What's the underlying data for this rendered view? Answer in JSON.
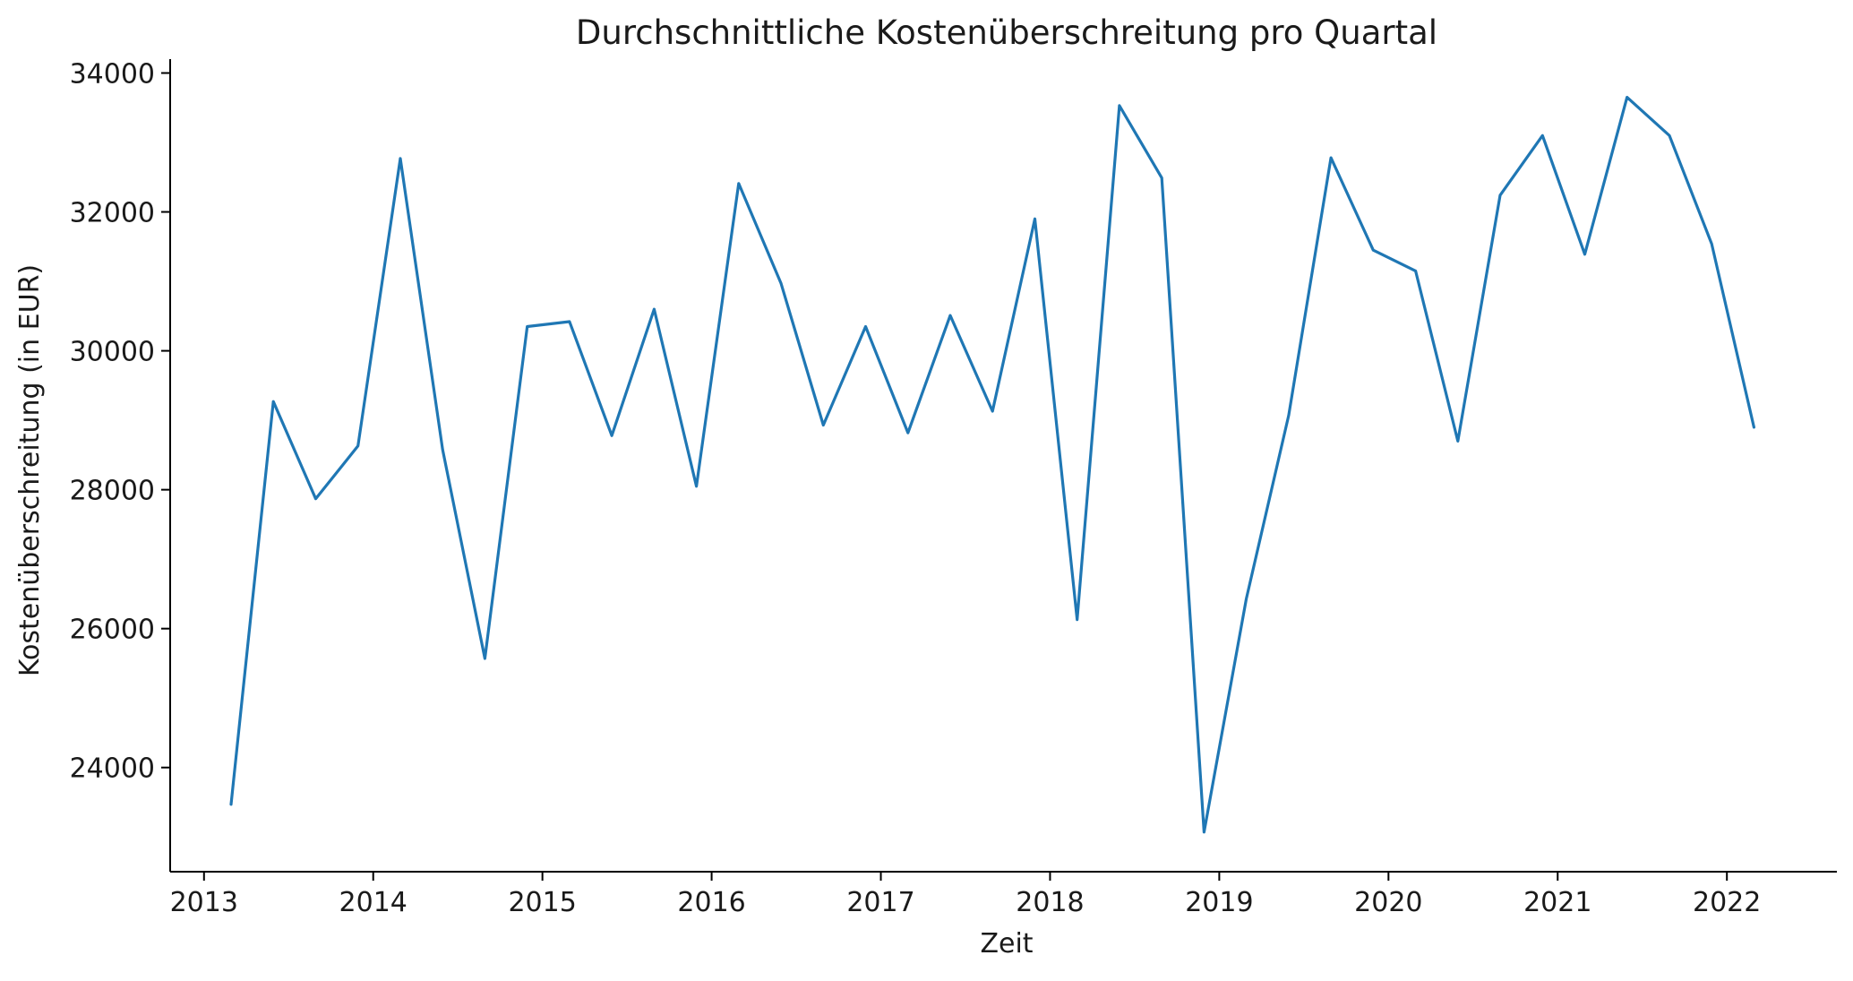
{
  "chart_data": {
    "type": "line",
    "title": "Durchschnittliche Kostenüberschreitung pro Quartal",
    "xlabel": "Zeit",
    "ylabel": "Kostenüberschreitung (in EUR)",
    "x_unit": "year",
    "xlim": [
      2012.8,
      2022.65
    ],
    "ylim": [
      22500,
      34200
    ],
    "x_ticks": [
      2013,
      2014,
      2015,
      2016,
      2017,
      2018,
      2019,
      2020,
      2021,
      2022
    ],
    "x_tick_labels": [
      "2013",
      "2014",
      "2015",
      "2016",
      "2017",
      "2018",
      "2019",
      "2020",
      "2021",
      "2022"
    ],
    "y_ticks": [
      24000,
      26000,
      28000,
      30000,
      32000,
      34000
    ],
    "y_tick_labels": [
      "24000",
      "26000",
      "28000",
      "30000",
      "32000",
      "34000"
    ],
    "grid": false,
    "series": [
      {
        "color": "#1f77b4",
        "x": [
          2013.16,
          2013.41,
          2013.66,
          2013.91,
          2014.16,
          2014.41,
          2014.66,
          2014.91,
          2015.16,
          2015.41,
          2015.66,
          2015.91,
          2016.16,
          2016.41,
          2016.66,
          2016.91,
          2017.16,
          2017.41,
          2017.66,
          2017.91,
          2018.16,
          2018.41,
          2018.66,
          2018.91,
          2019.16,
          2019.41,
          2019.66,
          2019.91,
          2020.16,
          2020.41,
          2020.66,
          2020.91,
          2021.16,
          2021.41,
          2021.66,
          2021.91,
          2022.16
        ],
        "y": [
          23470,
          29270,
          27870,
          28630,
          32770,
          28580,
          25570,
          30350,
          30420,
          28780,
          30600,
          28050,
          32410,
          30970,
          28930,
          30350,
          28820,
          30510,
          29130,
          31900,
          26130,
          33530,
          32490,
          23070,
          26430,
          29070,
          32780,
          31450,
          31150,
          28700,
          32240,
          33100,
          31390,
          33650,
          33100,
          31540,
          28900
        ]
      }
    ]
  }
}
